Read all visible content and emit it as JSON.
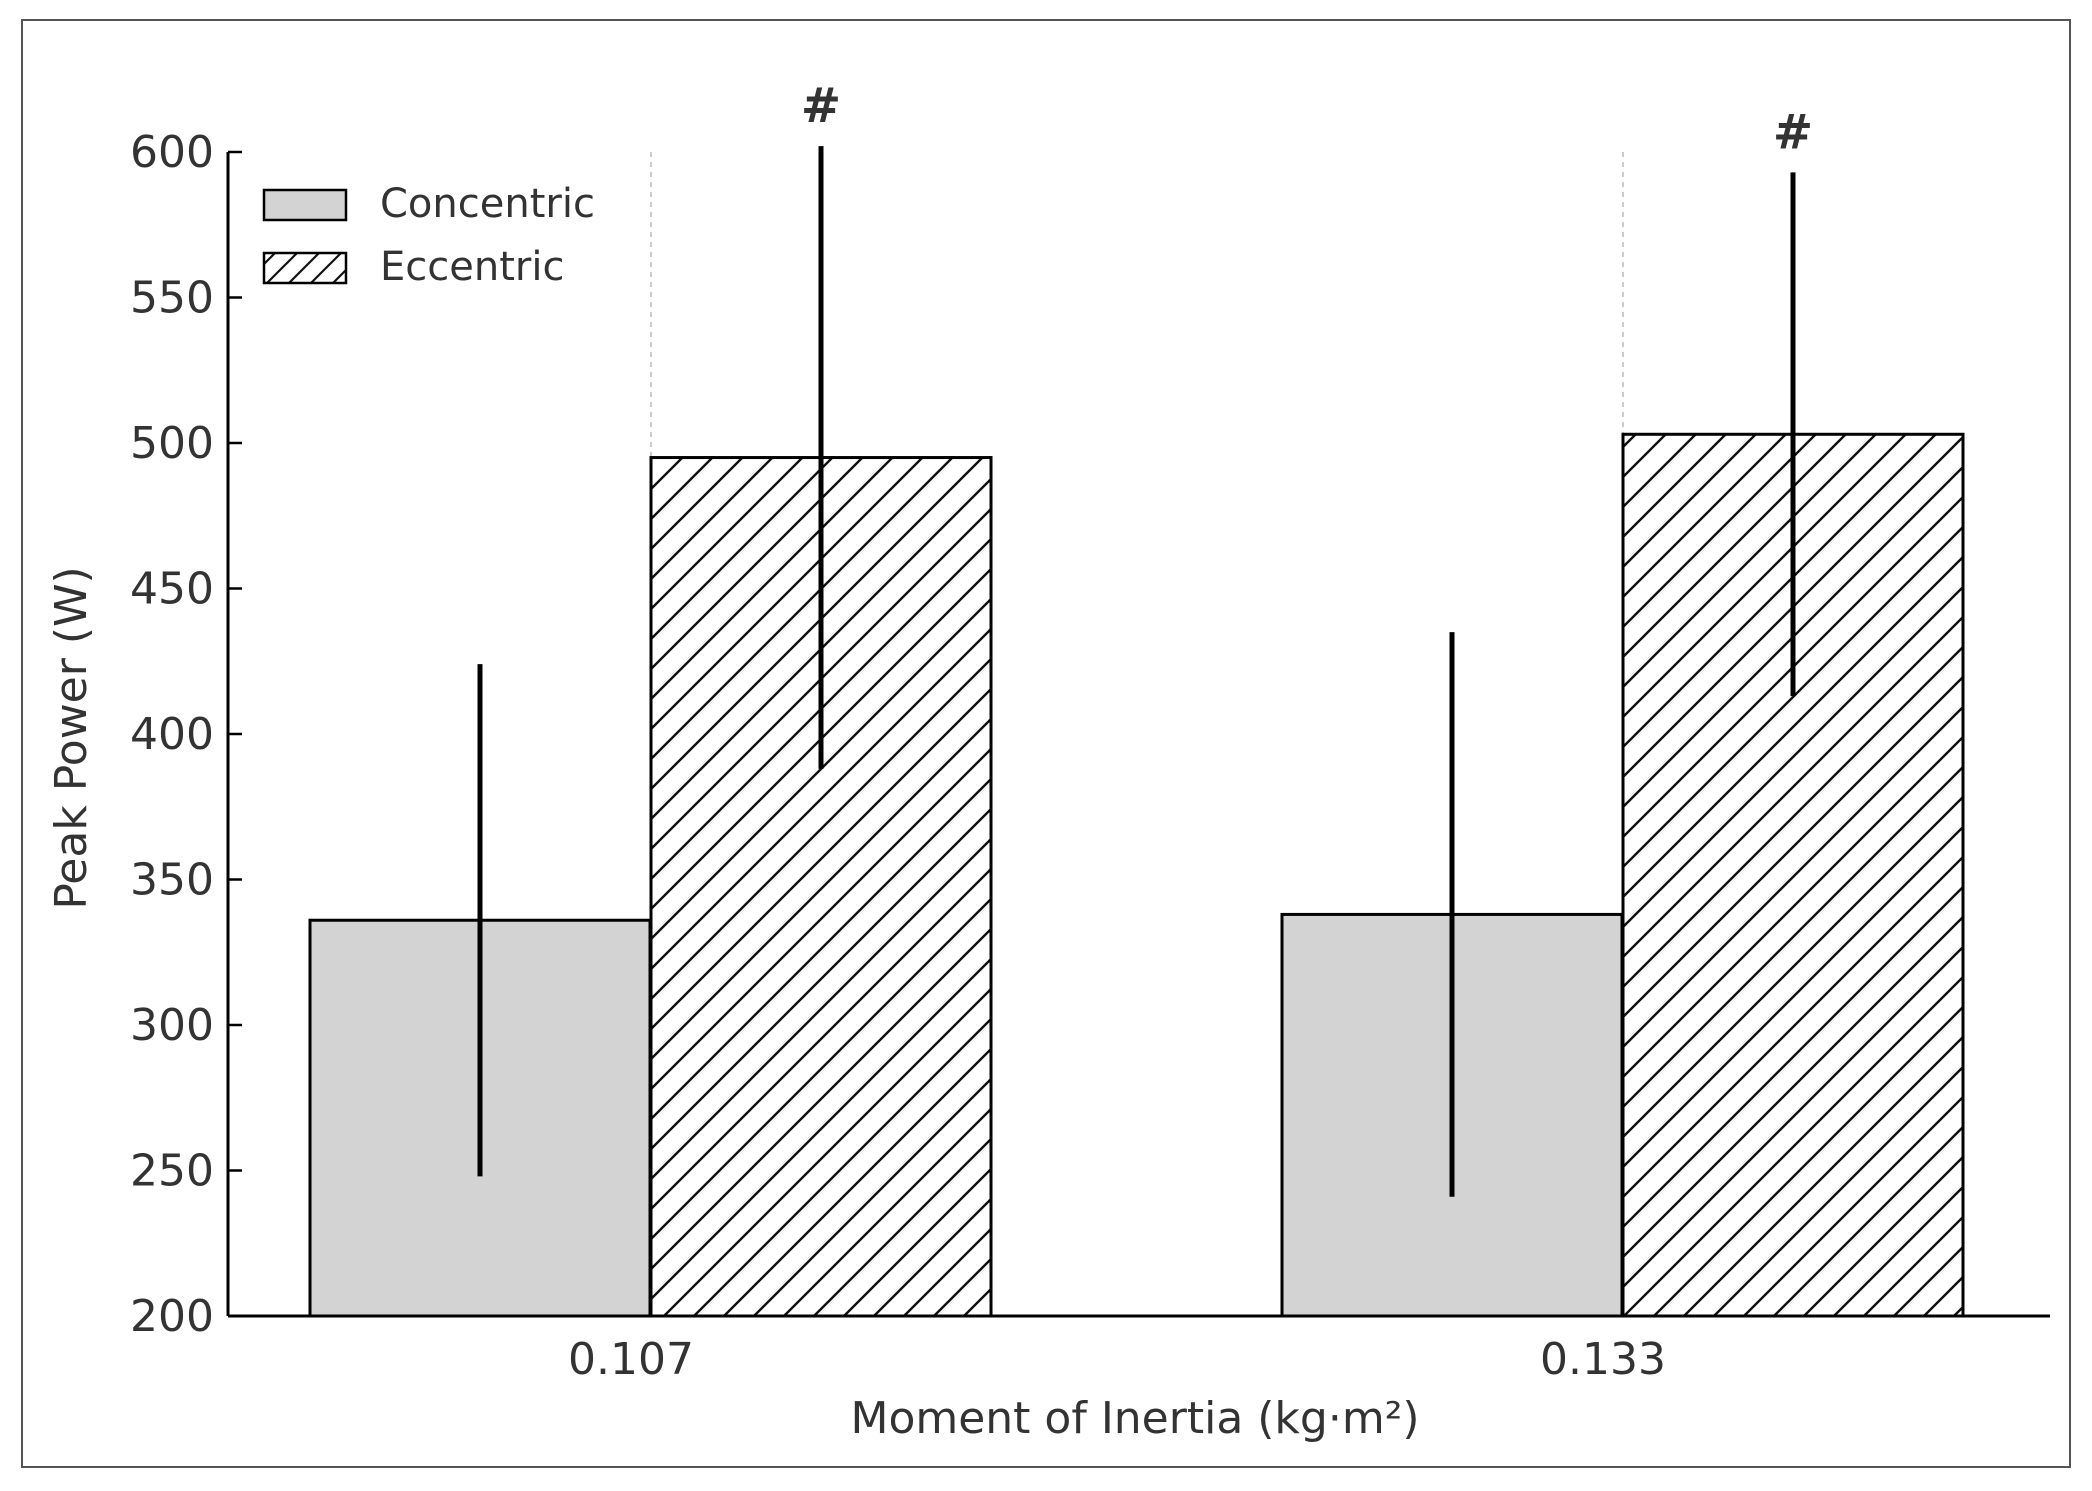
{
  "chart_data": {
    "type": "bar",
    "title": "",
    "xlabel": "Moment of Inertia (kg·m²)",
    "ylabel": "Peak Power (W)",
    "categories": [
      "0.107",
      "0.133"
    ],
    "ylim": [
      200,
      600
    ],
    "yticks": [
      "200",
      "250",
      "300",
      "350",
      "400",
      "450",
      "500",
      "550",
      "600"
    ],
    "grid": false,
    "legend_position": "top-left",
    "series": [
      {
        "name": "Concentric",
        "values": [
          336,
          338
        ],
        "errors": [
          88,
          97
        ],
        "fill": "#d3d3d3",
        "hatch": "none"
      },
      {
        "name": "Eccentric",
        "values": [
          495,
          503
        ],
        "errors": [
          107,
          90
        ],
        "fill": "#ffffff",
        "hatch": "diagonal"
      }
    ],
    "annotations": [
      {
        "text": "#",
        "category": "0.107",
        "series": "Eccentric"
      },
      {
        "text": "#",
        "category": "0.133",
        "series": "Eccentric"
      }
    ],
    "colors": {
      "bar_edge": "#000000",
      "error_bar": "#000000",
      "text": "#333333"
    }
  }
}
